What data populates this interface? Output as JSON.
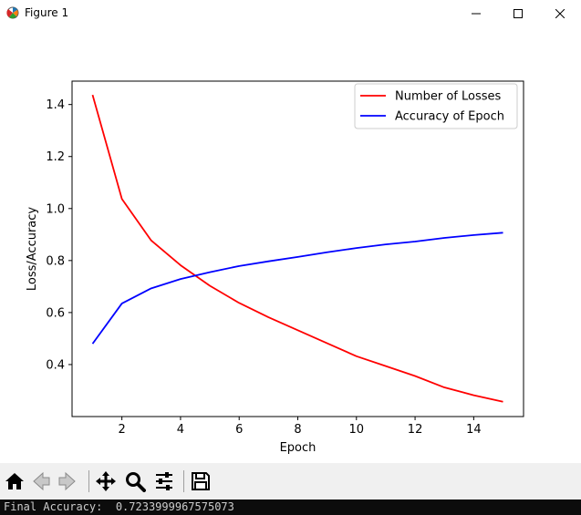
{
  "window": {
    "title": "Figure 1",
    "icon": "matplotlib-figure-icon"
  },
  "window_controls": [
    "minimize-icon",
    "maximize-icon",
    "close-icon"
  ],
  "toolbar": {
    "buttons": [
      "home-icon",
      "back-icon",
      "forward-icon",
      "pan-icon",
      "zoom-icon",
      "configure-subplots-icon",
      "save-icon"
    ]
  },
  "console": {
    "text": "Final Accuracy:  0.7233999967575073"
  },
  "chart_data": {
    "type": "line",
    "title": "",
    "xlabel": "Epoch",
    "ylabel": "Loss/Accuracy",
    "x": [
      1,
      2,
      3,
      4,
      5,
      6,
      7,
      8,
      9,
      10,
      11,
      12,
      13,
      14,
      15
    ],
    "xlim": [
      0.3,
      15.7
    ],
    "ylim": [
      0.2,
      1.49
    ],
    "xticks": [
      2,
      4,
      6,
      8,
      10,
      12,
      14
    ],
    "yticks": [
      0.4,
      0.6,
      0.8,
      1.0,
      1.2,
      1.4
    ],
    "xtick_labels": [
      "2",
      "4",
      "6",
      "8",
      "10",
      "12",
      "14"
    ],
    "ytick_labels": [
      "0.4",
      "0.6",
      "0.8",
      "1.0",
      "1.2",
      "1.4"
    ],
    "grid": false,
    "legend_position": "top-right",
    "series": [
      {
        "name": "Number of Losses",
        "color": "#ff0000",
        "values": [
          1.437,
          1.037,
          0.877,
          0.782,
          0.703,
          0.637,
          0.582,
          0.532,
          0.482,
          0.432,
          0.394,
          0.356,
          0.312,
          0.282,
          0.257
        ]
      },
      {
        "name": "Accuracy of Epoch",
        "color": "#0000ff",
        "values": [
          0.48,
          0.635,
          0.693,
          0.729,
          0.755,
          0.779,
          0.797,
          0.814,
          0.832,
          0.848,
          0.862,
          0.873,
          0.887,
          0.898,
          0.907
        ]
      }
    ]
  }
}
